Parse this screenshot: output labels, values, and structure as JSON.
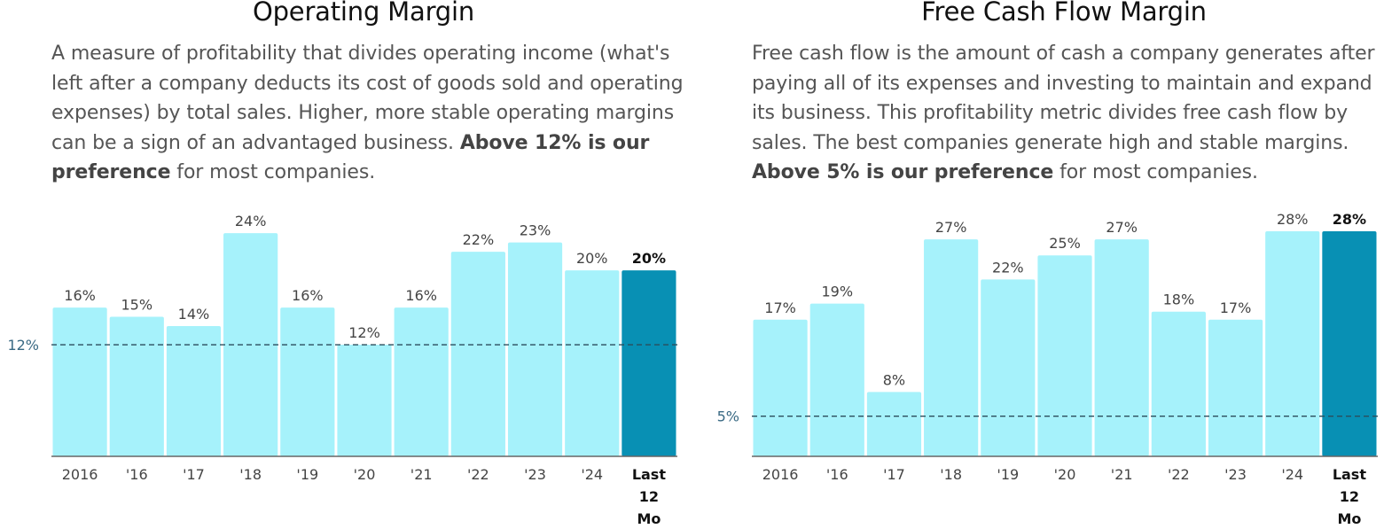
{
  "charts": {
    "left": {
      "title": "Operating Margin",
      "desc_prefix": "A measure of profitability that divides operating income (what's left after a company deducts its cost of goods sold and operating expenses) by total sales. Higher, more stable operating margins can be a sign of an advantaged business. ",
      "desc_bold": "Above 12% is our preference",
      "desc_suffix": " for most companies."
    },
    "right": {
      "title": "Free Cash Flow Margin",
      "desc_prefix": "Free cash flow is the amount of cash a company generates after paying all of its expenses and investing to maintain and expand its business. This profitability metric divides free cash flow by sales. The best companies generate high and stable margins. ",
      "desc_bold": "Above 5% is our preference",
      "desc_suffix": " for most companies."
    }
  },
  "colors": {
    "bar": "#a6f2fb",
    "highlight_bar": "#0890b4",
    "threshold_line": "#2b4d5c",
    "threshold_label": "#3a6a84",
    "axis": "#666666",
    "tick_text": "#444444"
  },
  "chart_data": [
    {
      "type": "bar",
      "title": "Operating Margin",
      "categories": [
        "2016",
        "'16",
        "'17",
        "'18",
        "'19",
        "'20",
        "'21",
        "'22",
        "'23",
        "'24",
        "Last 12 Mo"
      ],
      "values": [
        16,
        15,
        14,
        24,
        16,
        12,
        16,
        22,
        23,
        20,
        20
      ],
      "value_labels": [
        "16%",
        "15%",
        "14%",
        "24%",
        "16%",
        "12%",
        "16%",
        "22%",
        "23%",
        "20%",
        "20%"
      ],
      "highlight_index": 10,
      "reference_line": {
        "value": 12,
        "label": "12%",
        "style": "dashed"
      },
      "ylim": [
        0,
        24.2
      ],
      "grid": false,
      "legend": "none"
    },
    {
      "type": "bar",
      "title": "Free Cash Flow Margin",
      "categories": [
        "2016",
        "'16",
        "'17",
        "'18",
        "'19",
        "'20",
        "'21",
        "'22",
        "'23",
        "'24",
        "Last 12 Mo"
      ],
      "values": [
        17,
        19,
        8,
        27,
        22,
        25,
        27,
        18,
        17,
        28,
        28
      ],
      "value_labels": [
        "17%",
        "19%",
        "8%",
        "27%",
        "22%",
        "25%",
        "27%",
        "18%",
        "17%",
        "28%",
        "28%"
      ],
      "highlight_index": 10,
      "reference_line": {
        "value": 5,
        "label": "5%",
        "style": "dashed"
      },
      "ylim": [
        0,
        28
      ],
      "grid": false,
      "legend": "none"
    }
  ]
}
